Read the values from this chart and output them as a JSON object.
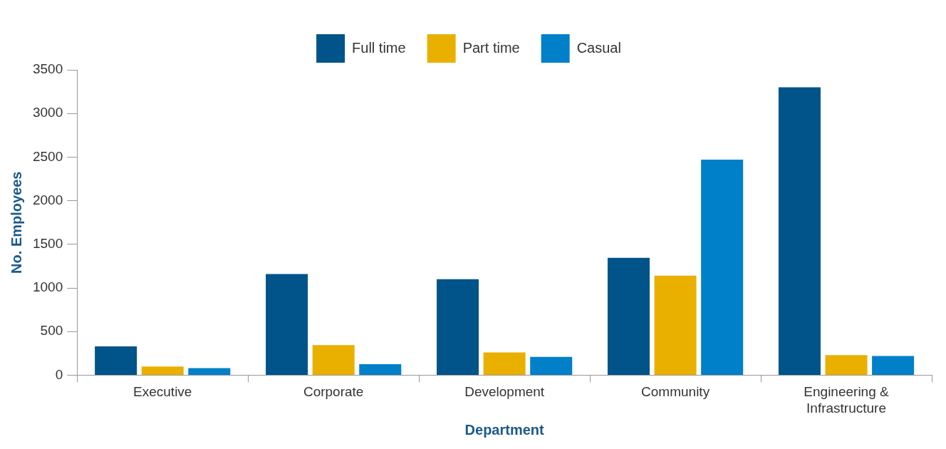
{
  "chart_data": {
    "type": "bar",
    "xlabel": "Department",
    "ylabel": "No. Employees",
    "categories": [
      "Executive",
      "Corporate",
      "Development",
      "Community",
      "Engineering & Infrastructure"
    ],
    "series": [
      {
        "name": "Full time",
        "color": "#00548a",
        "values": [
          330,
          1160,
          1100,
          1345,
          3300
        ]
      },
      {
        "name": "Part time",
        "color": "#e9b000",
        "values": [
          100,
          345,
          260,
          1140,
          230
        ]
      },
      {
        "name": "Casual",
        "color": "#0080c8",
        "values": [
          80,
          125,
          210,
          2470,
          220
        ]
      }
    ],
    "ylim": [
      0,
      3500
    ],
    "yticks": [
      0,
      500,
      1000,
      1500,
      2000,
      2500,
      3000,
      3500
    ],
    "grid": false,
    "legend": "top"
  }
}
